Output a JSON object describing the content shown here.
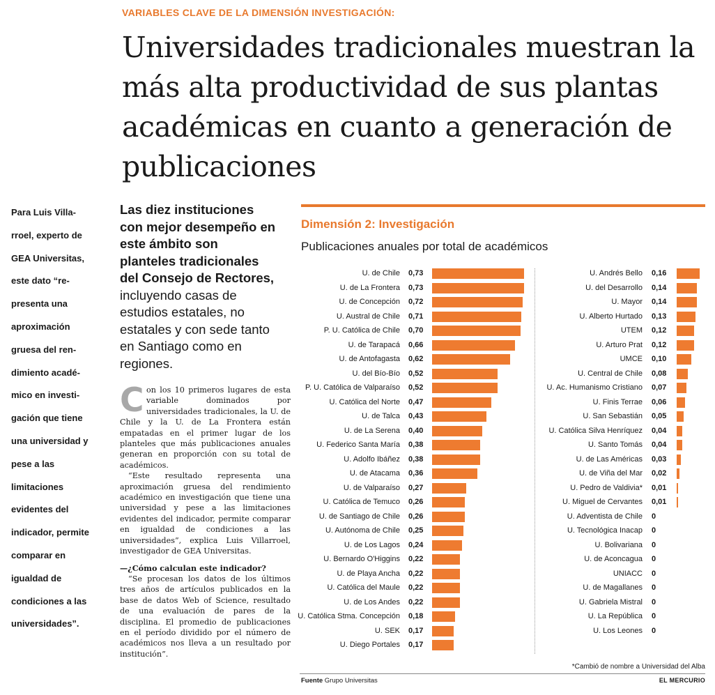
{
  "kicker": "VARIABLES CLAVE DE LA DIMENSIÓN INVESTIGACIÓN:",
  "headline": "Universidades tradicionales muestran la más alta productividad de sus plantas académicas en cuanto a generación de publicaciones",
  "pull_quote": "Para Luis Villa­rroel, experto de GEA Universitas, este dato “re­presenta una aproximación gruesa del ren­dimiento acadé­mico en investi­gación que tiene una universidad y pese a las limitaciones evidentes del indicador, per­mite comparar en igualdad de condiciones a las universidades”.",
  "lead": {
    "bold": "Las diez instituciones con mejor desempeño en este ámbito son planteles tradicionales del Consejo de Rectores,",
    "regular": "incluyendo casas de estudios estatales, no estatales y con sede tanto en Santiago como en regiones."
  },
  "body": {
    "dropcap": "C",
    "p1": "on los 10 primeros lugares de esta variable dominados por universidades tradicionales, la U. de Chile y la U. de La Frontera están empatadas en el primer lugar de los planteles que más publicaciones anuales generan en proporción con su total de académicos.",
    "p2": "“Este resultado representa una aproximación gruesa del rendimiento académico en investigación que tiene una universidad y pese a las limitaciones evidentes del indicador, permite comparar en igualdad de condiciones a las universidades”, explica Luis Villarroel, investigador de GEA Universitas.",
    "question": "—¿Cómo calculan este indicador?",
    "p3": "“Se procesan los datos de los últimos tres años de artículos publicados en la base de datos Web of Science, resultado de una evaluación de pares de la disciplina. El promedio de publicaciones en el período dividido por el número de académicos nos lleva a un resultado por institución”."
  },
  "chart_data": {
    "type": "bar",
    "orientation": "horizontal",
    "title": "Dimensión 2: Investigación",
    "subtitle": "Publicaciones anuales por total de académicos",
    "xlim": [
      0,
      0.73
    ],
    "bar_color": "#ee7b30",
    "categories": [
      "U. de Chile",
      "U. de La Frontera",
      "U. de Concepción",
      "U. Austral de Chile",
      "P. U. Católica de Chile",
      "U. de Tarapacá",
      "U. de Antofagasta",
      "U. del Bío-Bío",
      "P. U. Católica de Valparaíso",
      "U. Católica del Norte",
      "U. de Talca",
      "U. de La Serena",
      "U. Federico Santa María",
      "U. Adolfo Ibáñez",
      "U. de Atacama",
      "U. de Valparaíso",
      "U. Católica de Temuco",
      "U. de Santiago de Chile",
      "U. Autónoma de Chile",
      "U. de Los Lagos",
      "U. Bernardo O'Higgins",
      "U. de Playa Ancha",
      "U. Católica del Maule",
      "U. de Los Andes",
      "U. Católica Stma. Concepción",
      "U. SEK",
      "U. Diego Portales",
      "U. Andrés Bello",
      "U. del Desarrollo",
      "U. Mayor",
      "U. Alberto Hurtado",
      "UTEM",
      "U. Arturo Prat",
      "UMCE",
      "U. Central de Chile",
      "U. Ac. Humanismo Cristiano",
      "U. Finis Terrae",
      "U. San Sebastián",
      "U. Católica Silva Henríquez",
      "U. Santo Tomás",
      "U. de Las Américas",
      "U. de Viña del Mar",
      "U. Pedro de Valdivia*",
      "U. Miguel de Cervantes",
      "U. Adventista de Chile",
      "U. Tecnológica Inacap",
      "U. Bolivariana",
      "U. de Aconcagua",
      "UNIACC",
      "U. de Magallanes",
      "U. Gabriela Mistral",
      "U. La República",
      "U. Los Leones"
    ],
    "values": [
      0.73,
      0.73,
      0.72,
      0.71,
      0.7,
      0.66,
      0.62,
      0.52,
      0.52,
      0.47,
      0.43,
      0.4,
      0.38,
      0.38,
      0.36,
      0.27,
      0.26,
      0.26,
      0.25,
      0.24,
      0.22,
      0.22,
      0.22,
      0.22,
      0.18,
      0.17,
      0.17,
      0.16,
      0.14,
      0.14,
      0.13,
      0.12,
      0.12,
      0.1,
      0.08,
      0.07,
      0.06,
      0.05,
      0.04,
      0.04,
      0.03,
      0.02,
      0.01,
      0.01,
      0,
      0,
      0,
      0,
      0,
      0,
      0,
      0,
      0
    ],
    "value_labels": [
      "0,73",
      "0,73",
      "0,72",
      "0,71",
      "0,70",
      "0,66",
      "0,62",
      "0,52",
      "0,52",
      "0,47",
      "0,43",
      "0,40",
      "0,38",
      "0,38",
      "0,36",
      "0,27",
      "0,26",
      "0,26",
      "0,25",
      "0,24",
      "0,22",
      "0,22",
      "0,22",
      "0,22",
      "0,18",
      "0,17",
      "0,17",
      "0,16",
      "0,14",
      "0,14",
      "0,13",
      "0,12",
      "0,12",
      "0,10",
      "0,08",
      "0,07",
      "0,06",
      "0,05",
      "0,04",
      "0,04",
      "0,03",
      "0,02",
      "0,01",
      "0,01",
      "0",
      "0",
      "0",
      "0",
      "0",
      "0",
      "0",
      "0",
      "0"
    ],
    "footnote": "*Cambió de nombre a Universidad del Alba"
  },
  "source_label": "Fuente",
  "source_text": "Grupo Universitas",
  "brand": "EL MERCURIO"
}
